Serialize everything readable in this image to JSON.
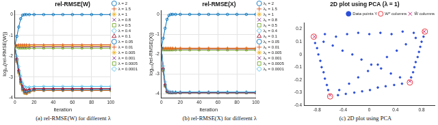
{
  "chart_data": [
    {
      "type": "line",
      "title": "rel-RMSE(W)",
      "caption": "(a) rel-RMSE(W) for different λ",
      "xlabel": "iteration",
      "ylabel": "log₁₀(rel-RMSE(W))",
      "xlim": [
        0,
        100
      ],
      "xticks": [
        0,
        20,
        40,
        60,
        80,
        100
      ],
      "ylim": [
        -4,
        0.2
      ],
      "yticks": [
        -4,
        -3,
        -2,
        -1,
        0
      ],
      "grid": true,
      "legend": "right",
      "x": [
        0,
        2,
        4,
        6,
        8,
        10,
        12,
        15,
        20,
        30,
        40,
        50,
        60,
        70,
        80,
        90,
        100
      ],
      "series": [
        {
          "name": "λ = 2",
          "color": "#0072bd",
          "marker": "circle",
          "line_style": "solid",
          "values": [
            -1.5,
            -1.05,
            -0.6,
            -0.2,
            -0.03,
            0,
            0,
            0,
            0,
            0,
            0,
            0,
            0,
            0,
            0,
            0,
            0
          ]
        },
        {
          "name": "λ = 1.5",
          "color": "#d95319",
          "marker": "plus",
          "line_style": "solid",
          "values": [
            -1.5,
            -1.47,
            -1.45,
            -1.45,
            -1.45,
            -1.45,
            -1.45,
            -1.45,
            -1.45,
            -1.45,
            -1.45,
            -1.45,
            -1.45,
            -1.45,
            -1.45,
            -1.45,
            -1.45
          ]
        },
        {
          "name": "λ = 1",
          "color": "#edb120",
          "marker": "asterisk",
          "line_style": "solid",
          "values": [
            -1.5,
            -1.5,
            -1.5,
            -1.5,
            -1.5,
            -1.5,
            -1.5,
            -1.5,
            -1.5,
            -1.5,
            -1.5,
            -1.5,
            -1.5,
            -1.5,
            -1.5,
            -1.5,
            -1.5
          ]
        },
        {
          "name": "λ = 0.8",
          "color": "#7e2f8e",
          "marker": "x",
          "line_style": "solid",
          "values": [
            -1.5,
            -1.53,
            -1.55,
            -1.55,
            -1.55,
            -1.55,
            -1.55,
            -1.55,
            -1.55,
            -1.55,
            -1.55,
            -1.55,
            -1.55,
            -1.55,
            -1.55,
            -1.55,
            -1.55
          ]
        },
        {
          "name": "λ = 0.5",
          "color": "#77ac30",
          "marker": "square",
          "line_style": "solid",
          "values": [
            -1.5,
            -1.57,
            -1.62,
            -1.62,
            -1.62,
            -1.62,
            -1.62,
            -1.62,
            -1.62,
            -1.62,
            -1.62,
            -1.62,
            -1.62,
            -1.62,
            -1.62,
            -1.62,
            -1.62
          ]
        },
        {
          "name": "λ = 0.4",
          "color": "#4dbeee",
          "marker": "diamond",
          "line_style": "solid",
          "values": [
            -1.5,
            -2.0,
            -2.5,
            -2.95,
            -3.3,
            -3.45,
            -3.5,
            -3.48,
            -3.46,
            -3.45,
            -3.45,
            -3.45,
            -3.45,
            -3.45,
            -3.45,
            -3.45,
            -3.45
          ]
        },
        {
          "name": "λ = 0.1",
          "color": "#a2142f",
          "marker": "triangle",
          "line_style": "solid",
          "values": [
            -1.5,
            -2.1,
            -2.65,
            -3.1,
            -3.45,
            -3.6,
            -3.62,
            -3.58,
            -3.55,
            -3.55,
            -3.55,
            -3.55,
            -3.55,
            -3.55,
            -3.55,
            -3.55,
            -3.55
          ]
        },
        {
          "name": "λ = 0.05",
          "color": "#0072bd",
          "marker": "circle",
          "line_style": "solid",
          "values": [
            -1.5,
            -2.15,
            -2.7,
            -3.2,
            -3.55,
            -3.7,
            -3.72,
            -3.66,
            -3.6,
            -3.6,
            -3.6,
            -3.6,
            -3.6,
            -3.6,
            -3.6,
            -3.6,
            -3.6
          ]
        },
        {
          "name": "λ = 0.01",
          "color": "#d95319",
          "marker": "plus",
          "line_style": "solid",
          "values": [
            -1.5,
            -2.2,
            -2.75,
            -3.25,
            -3.6,
            -3.75,
            -3.78,
            -3.7,
            -3.63,
            -3.63,
            -3.63,
            -3.63,
            -3.63,
            -3.63,
            -3.63,
            -3.63,
            -3.63
          ]
        },
        {
          "name": "λ = 0.005",
          "color": "#edb120",
          "marker": "asterisk",
          "line_style": "solid",
          "values": [
            -1.5,
            -2.2,
            -2.8,
            -3.3,
            -3.62,
            -3.77,
            -3.8,
            -3.72,
            -3.64,
            -3.64,
            -3.64,
            -3.64,
            -3.64,
            -3.64,
            -3.64,
            -3.64,
            -3.64
          ]
        },
        {
          "name": "λ = 0.001",
          "color": "#7e2f8e",
          "marker": "x",
          "line_style": "solid",
          "values": [
            -1.5,
            -2.25,
            -2.8,
            -3.3,
            -3.63,
            -3.78,
            -3.8,
            -3.73,
            -3.65,
            -3.65,
            -3.65,
            -3.65,
            -3.65,
            -3.65,
            -3.65,
            -3.65,
            -3.65
          ]
        },
        {
          "name": "λ = 0.0005",
          "color": "#77ac30",
          "marker": "square",
          "line_style": "solid",
          "values": [
            -1.5,
            -2.25,
            -2.8,
            -3.3,
            -3.63,
            -3.78,
            -3.8,
            -3.73,
            -3.65,
            -3.65,
            -3.65,
            -3.65,
            -3.65,
            -3.65,
            -3.65,
            -3.65,
            -3.65
          ]
        },
        {
          "name": "λ = 0.0001",
          "color": "#4dbeee",
          "marker": "diamond",
          "line_style": "solid",
          "values": [
            -1.5,
            -2.25,
            -2.8,
            -3.3,
            -3.63,
            -3.78,
            -3.8,
            -3.73,
            -3.65,
            -3.65,
            -3.65,
            -3.65,
            -3.65,
            -3.65,
            -3.65,
            -3.65,
            -3.65
          ]
        }
      ]
    },
    {
      "type": "line",
      "title": "rel-RMSE(X)",
      "caption": "(b) rel-RMSE(X) for different λ",
      "xlabel": "iteration",
      "ylabel": "log₁₀(rel-RMSE(X))",
      "xlim": [
        0,
        100
      ],
      "xticks": [
        0,
        20,
        40,
        60,
        80,
        100
      ],
      "ylim": [
        -4.2,
        0.2
      ],
      "yticks": [
        -4,
        -3,
        -2,
        -1,
        0
      ],
      "grid": true,
      "legend": "right",
      "x": [
        0,
        2,
        4,
        6,
        8,
        10,
        12,
        15,
        20,
        30,
        40,
        50,
        60,
        70,
        80,
        90,
        100
      ],
      "series": [
        {
          "name": "λ₁ = 2",
          "color": "#0072bd",
          "marker": "circle",
          "line_style": "solid",
          "values": [
            -1.7,
            -1.2,
            -0.7,
            -0.25,
            -0.05,
            0,
            0,
            0,
            0,
            0,
            0,
            0,
            0,
            0,
            0,
            0,
            0
          ]
        },
        {
          "name": "λ₁ = 1.5",
          "color": "#d95319",
          "marker": "plus",
          "line_style": "solid",
          "values": [
            -1.7,
            -1.7,
            -1.7,
            -1.7,
            -1.7,
            -1.7,
            -1.7,
            -1.7,
            -1.7,
            -1.7,
            -1.7,
            -1.7,
            -1.7,
            -1.7,
            -1.7,
            -1.7,
            -1.7
          ]
        },
        {
          "name": "λ₁ = 1",
          "color": "#edb120",
          "marker": "asterisk",
          "line_style": "solid",
          "values": [
            -1.7,
            -1.72,
            -1.72,
            -1.72,
            -1.72,
            -1.72,
            -1.72,
            -1.72,
            -1.72,
            -1.72,
            -1.72,
            -1.72,
            -1.72,
            -1.72,
            -1.72,
            -1.72,
            -1.72
          ]
        },
        {
          "name": "λ₁ = 0.8",
          "color": "#7e2f8e",
          "marker": "x",
          "line_style": "solid",
          "values": [
            -1.7,
            -1.75,
            -1.75,
            -1.75,
            -1.75,
            -1.75,
            -1.75,
            -1.75,
            -1.75,
            -1.75,
            -1.75,
            -1.75,
            -1.75,
            -1.75,
            -1.75,
            -1.75,
            -1.75
          ]
        },
        {
          "name": "λ₁ = 0.5",
          "color": "#77ac30",
          "marker": "square",
          "line_style": "solid",
          "values": [
            -1.7,
            -1.8,
            -1.8,
            -1.8,
            -1.8,
            -1.8,
            -1.8,
            -1.8,
            -1.8,
            -1.8,
            -1.8,
            -1.8,
            -1.8,
            -1.8,
            -1.8,
            -1.8,
            -1.8
          ]
        },
        {
          "name": "λ₁ = 0.4",
          "color": "#4dbeee",
          "marker": "diamond",
          "line_style": "solid",
          "values": [
            -1.7,
            -2.6,
            -3.4,
            -3.8,
            -3.88,
            -3.9,
            -3.9,
            -3.9,
            -3.9,
            -3.9,
            -3.9,
            -3.9,
            -3.9,
            -3.9,
            -3.9,
            -3.9,
            -3.9
          ]
        },
        {
          "name": "λ₁ = 0.1",
          "color": "#a2142f",
          "marker": "triangle",
          "line_style": "solid",
          "values": [
            -1.7,
            -2.7,
            -3.5,
            -3.85,
            -3.91,
            -3.92,
            -3.92,
            -3.92,
            -3.92,
            -3.92,
            -3.92,
            -3.92,
            -3.92,
            -3.92,
            -3.92,
            -3.92,
            -3.92
          ]
        },
        {
          "name": "λ₁ = 0.05",
          "color": "#0072bd",
          "marker": "circle",
          "line_style": "solid",
          "values": [
            -1.7,
            -2.75,
            -3.55,
            -3.88,
            -3.92,
            -3.93,
            -3.93,
            -3.93,
            -3.93,
            -3.93,
            -3.93,
            -3.93,
            -3.93,
            -3.93,
            -3.93,
            -3.93,
            -3.93
          ]
        },
        {
          "name": "λ₁ = 0.01",
          "color": "#d95319",
          "marker": "plus",
          "line_style": "solid",
          "values": [
            -1.7,
            -2.8,
            -3.6,
            -3.9,
            -3.93,
            -3.94,
            -3.94,
            -3.94,
            -3.94,
            -3.94,
            -3.94,
            -3.94,
            -3.94,
            -3.94,
            -3.94,
            -3.94,
            -3.94
          ]
        },
        {
          "name": "λ₁ = 0.005",
          "color": "#edb120",
          "marker": "asterisk",
          "line_style": "solid",
          "values": [
            -1.7,
            -2.8,
            -3.6,
            -3.9,
            -3.93,
            -3.94,
            -3.94,
            -3.94,
            -3.94,
            -3.94,
            -3.94,
            -3.94,
            -3.94,
            -3.94,
            -3.94,
            -3.94,
            -3.94
          ]
        },
        {
          "name": "λ₁ = 0.001",
          "color": "#7e2f8e",
          "marker": "x",
          "line_style": "solid",
          "values": [
            -1.7,
            -2.85,
            -3.62,
            -3.91,
            -3.94,
            -3.95,
            -3.95,
            -3.95,
            -3.95,
            -3.95,
            -3.95,
            -3.95,
            -3.95,
            -3.95,
            -3.95,
            -3.95,
            -3.95
          ]
        },
        {
          "name": "λ₁ = 0.0005",
          "color": "#77ac30",
          "marker": "square",
          "line_style": "solid",
          "values": [
            -1.7,
            -2.85,
            -3.62,
            -3.91,
            -3.94,
            -3.95,
            -3.95,
            -3.95,
            -3.95,
            -3.95,
            -3.95,
            -3.95,
            -3.95,
            -3.95,
            -3.95,
            -3.95,
            -3.95
          ]
        },
        {
          "name": "λ₁ = 0.0001",
          "color": "#4dbeee",
          "marker": "diamond",
          "line_style": "solid",
          "values": [
            -1.7,
            -2.85,
            -3.62,
            -3.91,
            -3.94,
            -3.95,
            -3.95,
            -3.95,
            -3.95,
            -3.95,
            -3.95,
            -3.95,
            -3.95,
            -3.95,
            -3.95,
            -3.95,
            -3.95
          ]
        }
      ]
    },
    {
      "type": "scatter",
      "title": "2D plot using PCA (λ = 1)",
      "caption": "(c) 2D plot using PCA",
      "xlim": [
        -1,
        1
      ],
      "xticks": [
        -0.8,
        -0.4,
        0,
        0.4,
        0.8
      ],
      "ylim": [
        -0.4,
        0.25
      ],
      "yticks": [
        -0.4,
        -0.3,
        -0.2,
        -0.1,
        0,
        0.1,
        0.2
      ],
      "grid": false,
      "legend": "top",
      "series": [
        {
          "name": "Data points Y",
          "color": "#2b4fd8",
          "marker": "point",
          "x": [
            -0.68,
            -0.51,
            -0.34,
            -0.17,
            0.0,
            0.17,
            0.34,
            0.51,
            0.68,
            -0.83,
            -0.8,
            -0.78,
            -0.75,
            -0.73,
            -0.7,
            -0.68,
            -0.65,
            -0.63,
            -0.7,
            -0.56,
            -0.41,
            -0.26,
            -0.12,
            0.03,
            0.18,
            0.33,
            0.47,
            0.71,
            0.56,
            0.42,
            0.27,
            0.13,
            -0.02,
            -0.17,
            -0.31,
            -0.46,
            0.83,
            0.8,
            0.78,
            0.76,
            0.74,
            0.71,
            0.69,
            0.67,
            0.64,
            -0.48,
            -0.36,
            -0.23,
            -0.11,
            0.01,
            0.13,
            0.25,
            0.38,
            0.5
          ],
          "values": [
            0.16,
            0.14,
            0.16,
            0.17,
            0.16,
            0.17,
            0.16,
            0.18,
            0.17,
            0.09,
            0.05,
            0.0,
            -0.05,
            -0.1,
            -0.14,
            -0.19,
            -0.24,
            -0.28,
            0.1,
            0.07,
            0.03,
            0.0,
            -0.04,
            -0.08,
            -0.11,
            -0.15,
            -0.18,
            0.13,
            0.08,
            0.03,
            -0.02,
            -0.08,
            -0.13,
            -0.18,
            -0.23,
            -0.28,
            0.14,
            0.1,
            0.06,
            0.02,
            -0.02,
            -0.06,
            -0.1,
            -0.14,
            -0.18,
            -0.32,
            -0.31,
            -0.3,
            -0.29,
            -0.28,
            -0.26,
            -0.25,
            -0.24,
            -0.23
          ]
        },
        {
          "name": "W* columns",
          "color": "#e8202a",
          "marker": "circle",
          "x": [
            -0.85,
            0.85,
            -0.6,
            0.62
          ],
          "values": [
            0.14,
            0.18,
            -0.33,
            -0.22
          ]
        },
        {
          "name": "Ŵ columns",
          "color": "#c0136e",
          "marker": "x",
          "x": [
            -0.84,
            0.84,
            -0.6,
            0.62
          ],
          "values": [
            0.14,
            0.18,
            -0.32,
            -0.21
          ]
        }
      ]
    }
  ]
}
